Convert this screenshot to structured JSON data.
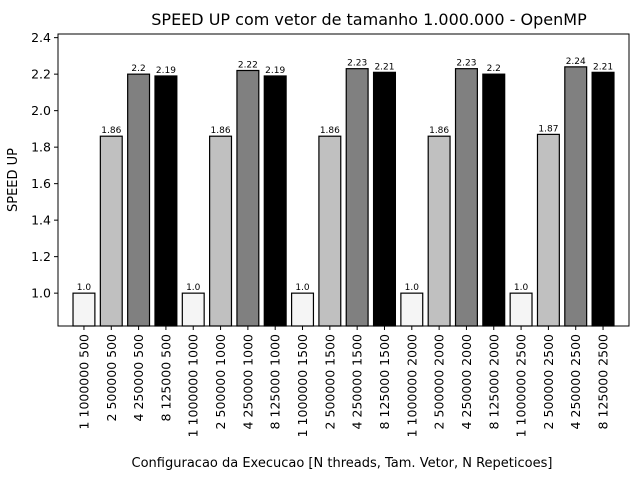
{
  "chart_data": {
    "type": "bar",
    "title": "SPEED UP com vetor de tamanho 1.000.000 - OpenMP",
    "xlabel": "Configuracao da Execucao [N threads, Tam. Vetor, N Repeticoes]",
    "ylabel": "SPEED UP",
    "ylim": [
      0.82,
      2.42
    ],
    "yticks": [
      "1.0",
      "1.2",
      "1.4",
      "1.6",
      "1.8",
      "2.0",
      "2.2",
      "2.4"
    ],
    "grid": false,
    "legend": "none",
    "categories": [
      "1 1000000 500",
      "2 500000 500",
      "4 250000 500",
      "8 125000 500",
      "1 1000000 1000",
      "2 500000 1000",
      "4 250000 1000",
      "8 125000 1000",
      "1 1000000 1500",
      "2 500000 1500",
      "4 250000 1500",
      "8 125000 1500",
      "1 1000000 2000",
      "2 500000 2000",
      "4 250000 2000",
      "8 125000 2000",
      "1 1000000 2500",
      "2 500000 2500",
      "4 250000 2500",
      "8 125000 2500"
    ],
    "values": [
      1.0,
      1.86,
      2.2,
      2.19,
      1.0,
      1.86,
      2.22,
      2.19,
      1.0,
      1.86,
      2.23,
      2.21,
      1.0,
      1.86,
      2.23,
      2.2,
      1.0,
      1.87,
      2.24,
      2.21
    ],
    "data_labels": [
      "1.0",
      "1.86",
      "2.2",
      "2.19",
      "1.0",
      "1.86",
      "2.22",
      "2.19",
      "1.0",
      "1.86",
      "2.23",
      "2.21",
      "1.0",
      "1.86",
      "2.23",
      "2.2",
      "1.0",
      "1.87",
      "2.24",
      "2.21"
    ],
    "bar_colors": [
      "#f5f5f5",
      "#c0c0c0",
      "#808080",
      "#000000"
    ]
  }
}
